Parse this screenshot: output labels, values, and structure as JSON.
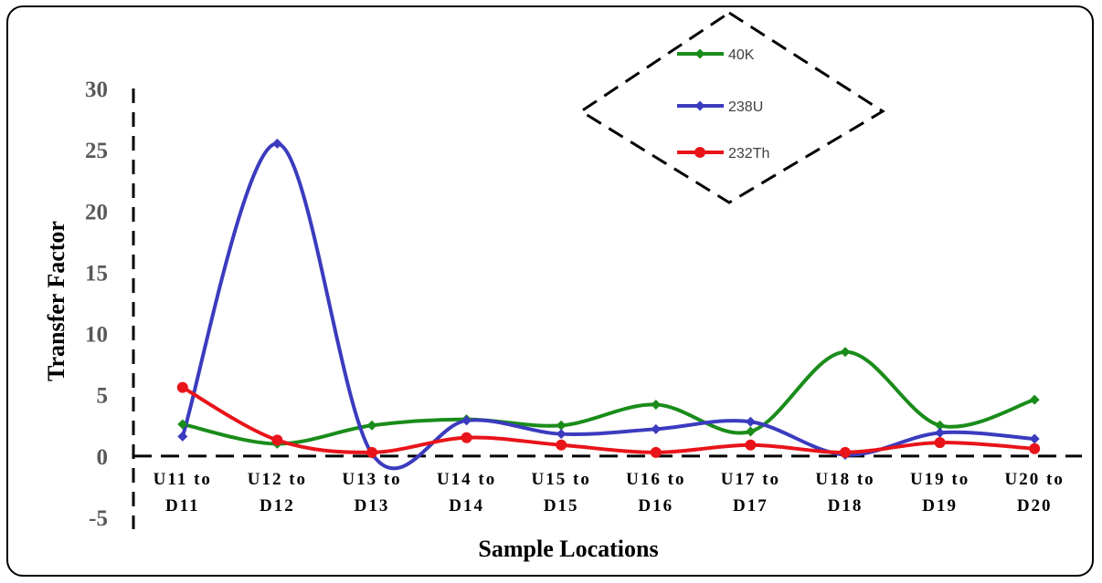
{
  "chart_data": {
    "type": "line",
    "categories": [
      [
        "U11 to",
        "D11"
      ],
      [
        "U12 to",
        "D12"
      ],
      [
        "U13 to",
        "D13"
      ],
      [
        "U14 to",
        "D14"
      ],
      [
        "U15 to",
        "D15"
      ],
      [
        "U16 to",
        "D16"
      ],
      [
        "U17 to",
        "D17"
      ],
      [
        "U18 to",
        "D18"
      ],
      [
        "U19 to",
        "D19"
      ],
      [
        "U20 to",
        "D20"
      ]
    ],
    "series": [
      {
        "name": "40K",
        "color": "#1a8c1a",
        "marker": "diamond",
        "values": [
          2.6,
          1.0,
          2.5,
          3.0,
          2.5,
          4.2,
          2.0,
          8.5,
          2.5,
          4.6
        ]
      },
      {
        "name": "238U",
        "color": "#3b3bbf",
        "marker": "diamond",
        "values": [
          1.6,
          25.5,
          0.2,
          2.9,
          1.8,
          2.2,
          2.8,
          0.1,
          1.9,
          1.4
        ]
      },
      {
        "name": "232Th",
        "color": "#e8141a",
        "marker": "circle",
        "values": [
          5.6,
          1.3,
          0.3,
          1.5,
          0.9,
          0.3,
          0.9,
          0.3,
          1.1,
          0.6
        ]
      }
    ],
    "xlabel": "Sample Locations",
    "ylabel": "Transfer Factor",
    "ylim": [
      -5,
      30
    ],
    "yticks": [
      -5,
      0,
      5,
      10,
      15,
      20,
      25,
      30
    ],
    "grid": false,
    "legend_position": "top-right"
  }
}
